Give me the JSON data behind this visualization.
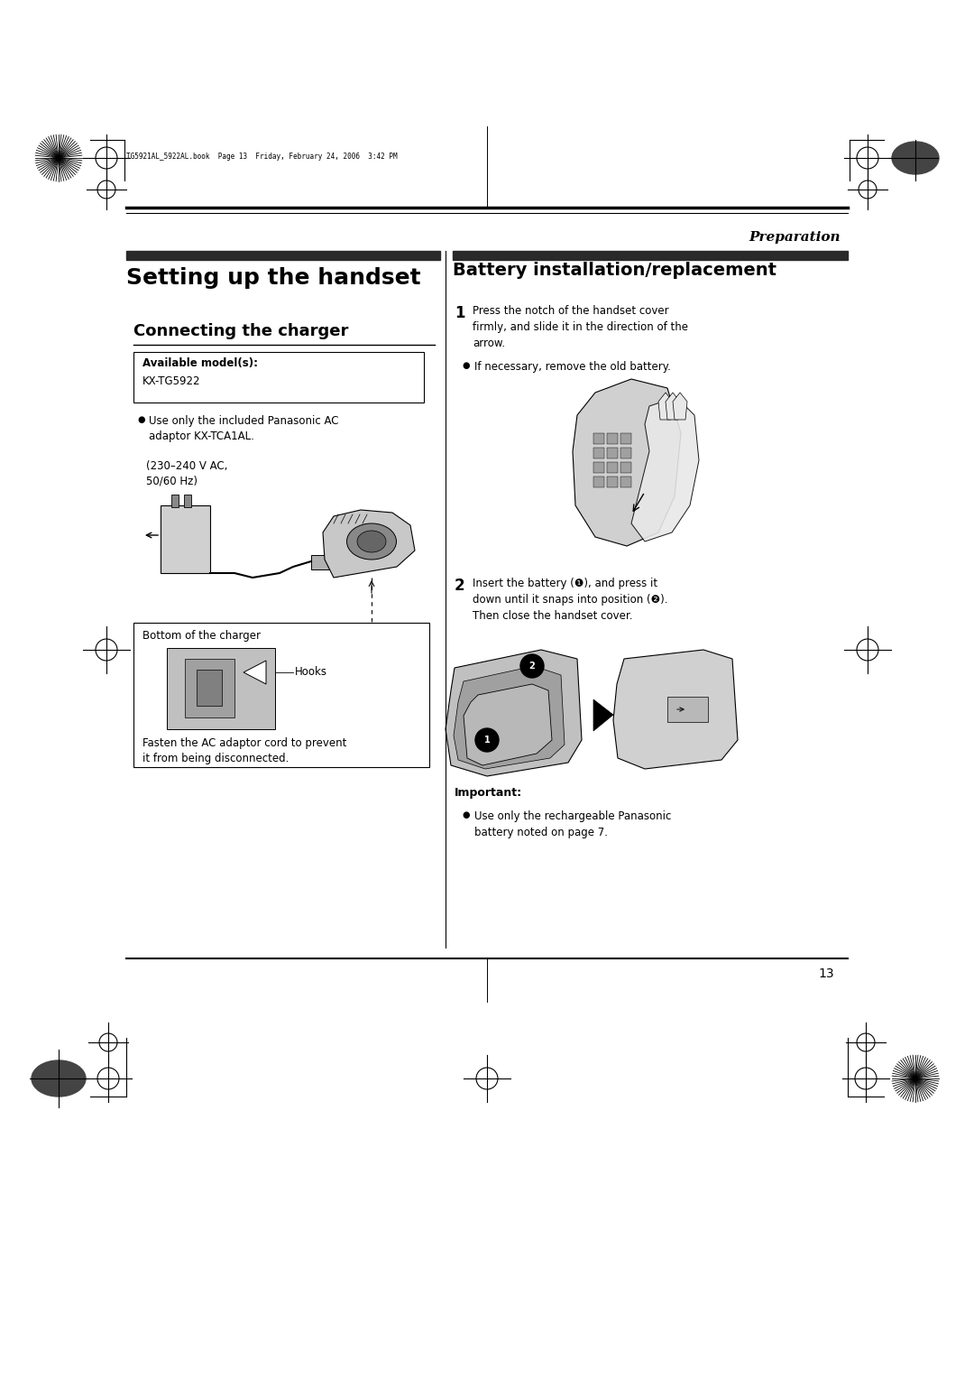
{
  "bg_color": "#ffffff",
  "page_width": 10.8,
  "page_height": 15.28,
  "dpi": 100,
  "header_text": "TG5921AL_5922AL.book  Page 13  Friday, February 24, 2006  3:42 PM",
  "header_italic": "Preparation",
  "section_left_title": "Setting up the handset",
  "section_right_title": "Battery installation/replacement",
  "subsection_left": "Connecting the charger",
  "available_models_label": "Available model(s):",
  "available_models_value": "KX-TG5922",
  "bullet1": "Use only the included Panasonic AC\nadaptor KX-TCA1AL.",
  "voltage_text": "(230–240 V AC,\n50/60 Hz)",
  "bottom_charger_label": "Bottom of the charger",
  "hooks_label": "Hooks",
  "fasten_text": "Fasten the AC adaptor cord to prevent\nit from being disconnected.",
  "step1_text": "Press the notch of the handset cover\nfirmly, and slide it in the direction of the\narrow.",
  "step1_bullet": "If necessary, remove the old battery.",
  "step2_text": "Insert the battery (❶), and press it\ndown until it snaps into position (❷).\nThen close the handset cover.",
  "important_label": "Important:",
  "important_bullet": "Use only the rechargeable Panasonic\nbattery noted on page 7.",
  "page_number": "13"
}
